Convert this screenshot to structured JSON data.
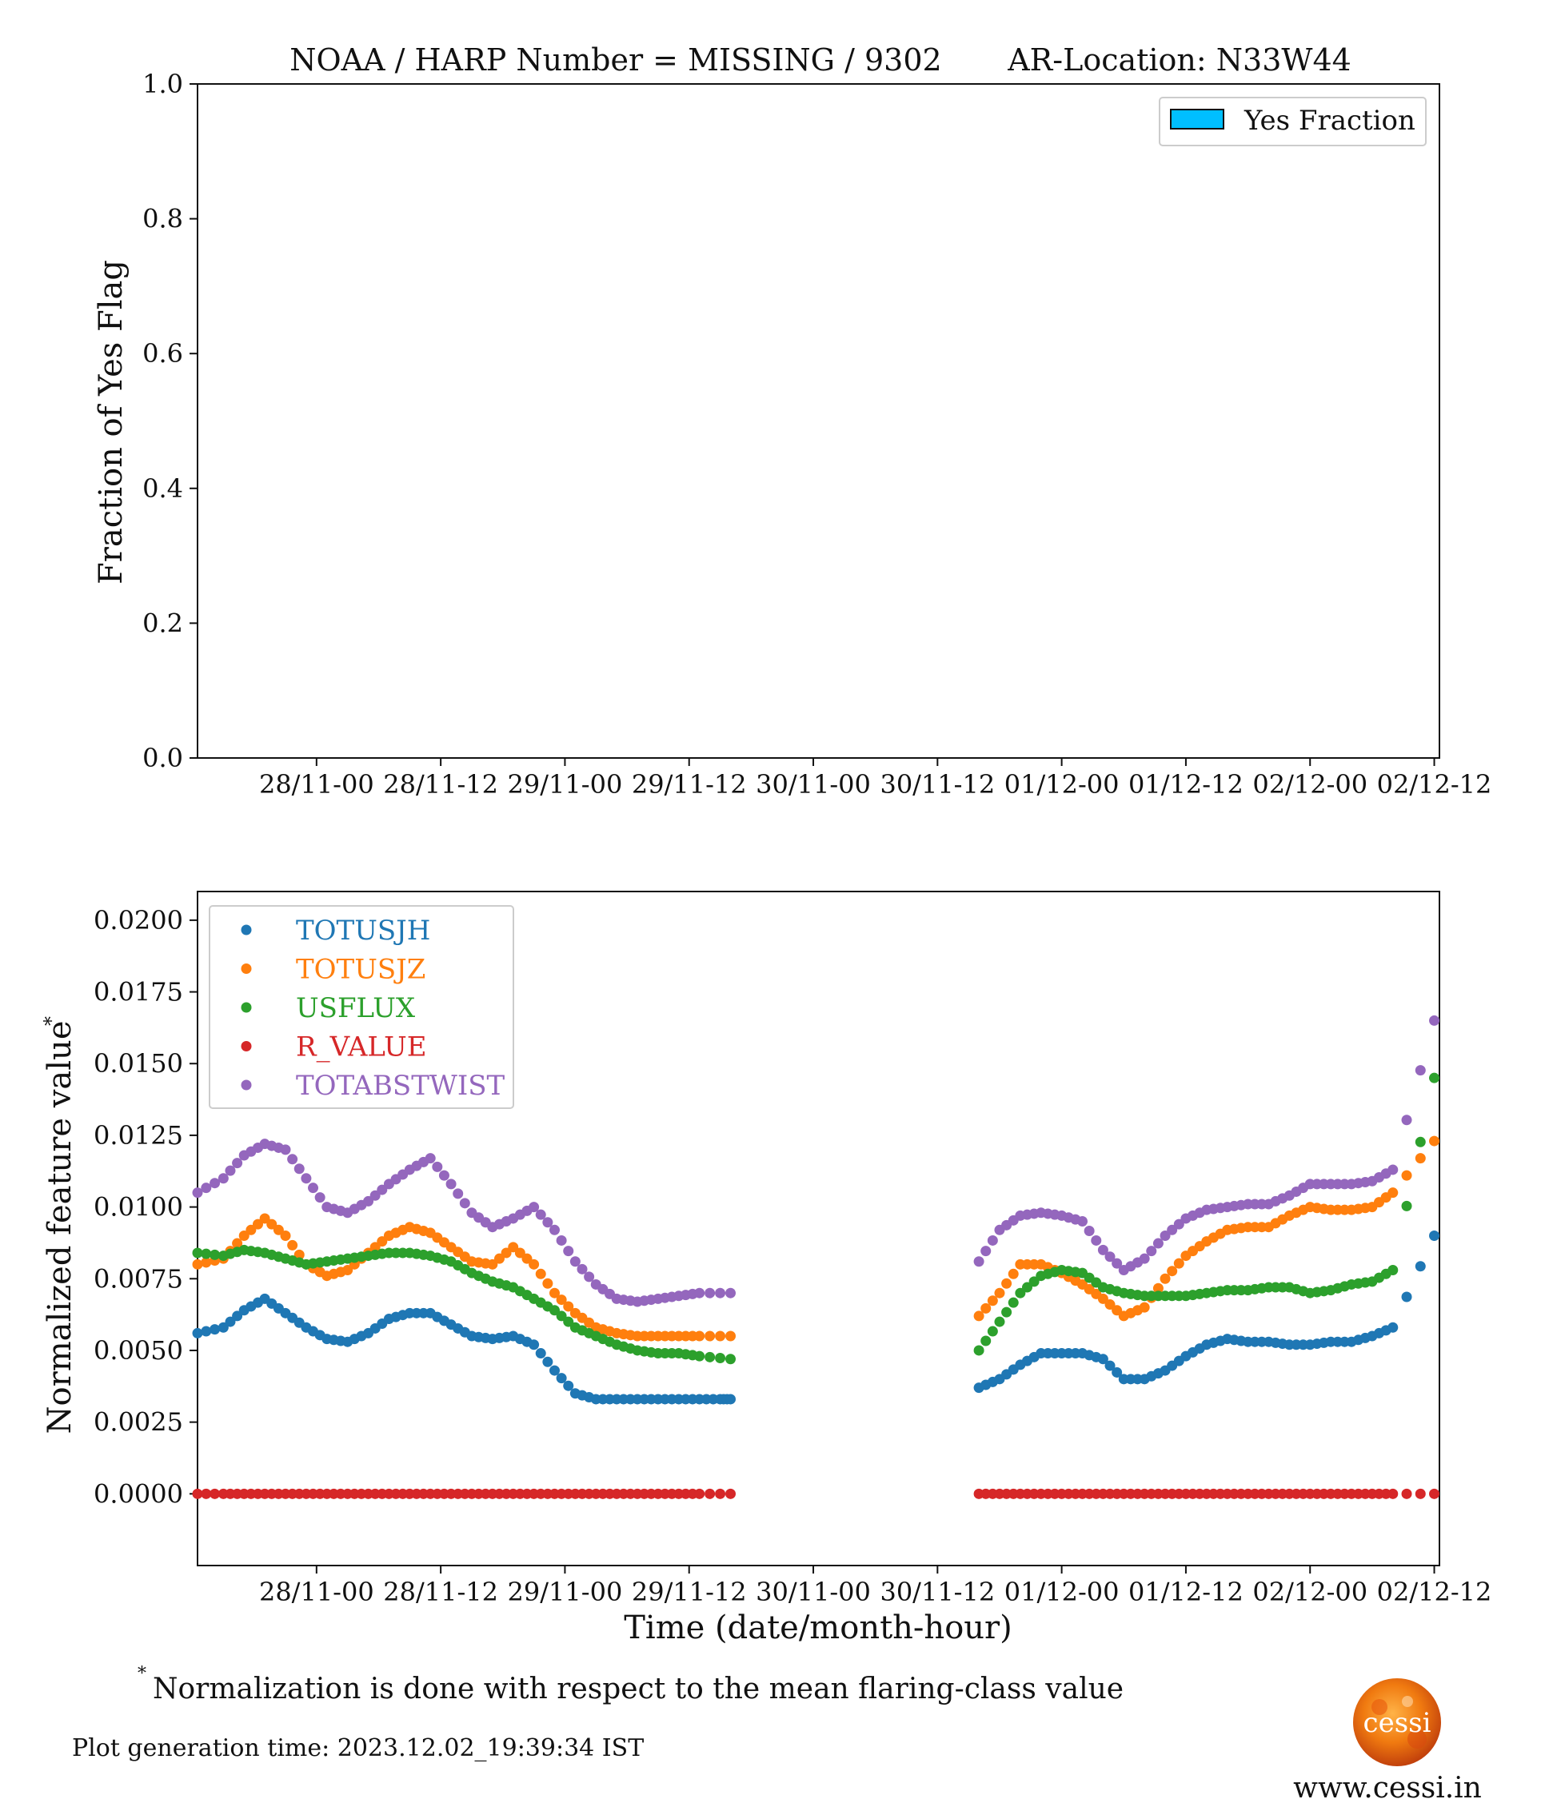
{
  "chart_data": [
    {
      "type": "bar",
      "title_left": "NOAA / HARP Number = MISSING / 9302",
      "title_right": "AR-Location: N33W44",
      "ylabel": "Fraction of Yes Flag",
      "xlabel": "",
      "ylim": [
        0,
        1.0
      ],
      "yticks": [
        "0.0",
        "0.2",
        "0.4",
        "0.6",
        "0.8",
        "1.0"
      ],
      "xticks": [
        "28/11-00",
        "28/11-12",
        "29/11-00",
        "29/11-12",
        "30/11-00",
        "30/11-12",
        "01/12-00",
        "01/12-12",
        "02/12-00",
        "02/12-12"
      ],
      "legend": [
        {
          "name": "Yes Fraction",
          "color": "#00bfff"
        }
      ],
      "legend_position": "top-right",
      "values": [],
      "grid": false
    },
    {
      "type": "scatter",
      "ylabel": "Normalized feature value",
      "ylabel_mark": "*",
      "xlabel": "Time (date/month-hour)",
      "x_unit": "hours since 28/11-00",
      "xlim": [
        -11.5,
        108.5
      ],
      "ylim": [
        -0.0025,
        0.021
      ],
      "yticks": [
        "0.0000",
        "0.0025",
        "0.0050",
        "0.0075",
        "0.0100",
        "0.0125",
        "0.0150",
        "0.0175",
        "0.0200"
      ],
      "xticks": [
        "28/11-00",
        "28/11-12",
        "29/11-00",
        "29/11-12",
        "30/11-00",
        "30/11-12",
        "01/12-00",
        "01/12-12",
        "02/12-00",
        "02/12-12"
      ],
      "legend_position": "top-left",
      "grid": false,
      "series": [
        {
          "name": "TOTUSJH",
          "color": "#1f77b4",
          "points": [
            [
              -11.5,
              0.0056
            ],
            [
              -9,
              0.0058
            ],
            [
              -7,
              0.0064
            ],
            [
              -5,
              0.0068
            ],
            [
              -3,
              0.0063
            ],
            [
              -1,
              0.0058
            ],
            [
              1,
              0.0054
            ],
            [
              3,
              0.0053
            ],
            [
              5,
              0.0056
            ],
            [
              7,
              0.0061
            ],
            [
              9,
              0.0063
            ],
            [
              11,
              0.0063
            ],
            [
              13,
              0.0059
            ],
            [
              15,
              0.0055
            ],
            [
              17,
              0.0054
            ],
            [
              19,
              0.0055
            ],
            [
              21,
              0.0052
            ],
            [
              23,
              0.0043
            ],
            [
              25,
              0.0035
            ],
            [
              27,
              0.0033
            ],
            [
              29,
              0.0033
            ],
            [
              31,
              0.0033
            ],
            [
              33,
              0.0033
            ],
            [
              35,
              0.0033
            ],
            [
              37,
              0.0033
            ],
            [
              39,
              0.0033
            ],
            [
              40,
              0.0033
            ],
            [
              52,
              null
            ],
            [
              64,
              0.0037
            ],
            [
              66,
              0.004
            ],
            [
              68,
              0.0045
            ],
            [
              70,
              0.0049
            ],
            [
              72,
              0.0049
            ],
            [
              74,
              0.0049
            ],
            [
              76,
              0.0047
            ],
            [
              78,
              0.004
            ],
            [
              80,
              0.004
            ],
            [
              82,
              0.0043
            ],
            [
              84,
              0.0048
            ],
            [
              86,
              0.0052
            ],
            [
              88,
              0.0054
            ],
            [
              90,
              0.0053
            ],
            [
              92,
              0.0053
            ],
            [
              94,
              0.0052
            ],
            [
              96,
              0.0052
            ],
            [
              98,
              0.0053
            ],
            [
              100,
              0.0053
            ],
            [
              102,
              0.0055
            ],
            [
              104,
              0.0058
            ],
            [
              108,
              0.009
            ]
          ]
        },
        {
          "name": "TOTUSJZ",
          "color": "#ff7f0e",
          "points": [
            [
              -11.5,
              0.008
            ],
            [
              -9,
              0.0082
            ],
            [
              -7,
              0.009
            ],
            [
              -5,
              0.0096
            ],
            [
              -3,
              0.009
            ],
            [
              -1,
              0.008
            ],
            [
              1,
              0.0076
            ],
            [
              3,
              0.0078
            ],
            [
              5,
              0.0084
            ],
            [
              7,
              0.009
            ],
            [
              9,
              0.0093
            ],
            [
              11,
              0.0091
            ],
            [
              13,
              0.0086
            ],
            [
              15,
              0.0081
            ],
            [
              17,
              0.008
            ],
            [
              19,
              0.0086
            ],
            [
              21,
              0.008
            ],
            [
              23,
              0.007
            ],
            [
              25,
              0.0063
            ],
            [
              27,
              0.0058
            ],
            [
              29,
              0.0056
            ],
            [
              31,
              0.0055
            ],
            [
              33,
              0.0055
            ],
            [
              35,
              0.0055
            ],
            [
              37,
              0.0055
            ],
            [
              40,
              0.0055
            ],
            [
              64,
              0.0062
            ],
            [
              66,
              0.007
            ],
            [
              68,
              0.008
            ],
            [
              70,
              0.008
            ],
            [
              72,
              0.0077
            ],
            [
              74,
              0.0073
            ],
            [
              76,
              0.0068
            ],
            [
              78,
              0.0062
            ],
            [
              80,
              0.0065
            ],
            [
              82,
              0.0075
            ],
            [
              84,
              0.0083
            ],
            [
              86,
              0.0088
            ],
            [
              88,
              0.0092
            ],
            [
              90,
              0.0093
            ],
            [
              92,
              0.0093
            ],
            [
              94,
              0.0097
            ],
            [
              96,
              0.01
            ],
            [
              98,
              0.0099
            ],
            [
              100,
              0.0099
            ],
            [
              102,
              0.01
            ],
            [
              104,
              0.0105
            ],
            [
              108,
              0.0123
            ]
          ]
        },
        {
          "name": "USFLUX",
          "color": "#2ca02c",
          "points": [
            [
              -11.5,
              0.0084
            ],
            [
              -9,
              0.0083
            ],
            [
              -7,
              0.0085
            ],
            [
              -5,
              0.0084
            ],
            [
              -3,
              0.0082
            ],
            [
              -1,
              0.008
            ],
            [
              1,
              0.0081
            ],
            [
              3,
              0.0082
            ],
            [
              5,
              0.0083
            ],
            [
              7,
              0.0084
            ],
            [
              9,
              0.0084
            ],
            [
              11,
              0.0083
            ],
            [
              13,
              0.0081
            ],
            [
              15,
              0.0077
            ],
            [
              17,
              0.0074
            ],
            [
              19,
              0.0072
            ],
            [
              21,
              0.0068
            ],
            [
              23,
              0.0064
            ],
            [
              25,
              0.0058
            ],
            [
              27,
              0.0055
            ],
            [
              29,
              0.0052
            ],
            [
              31,
              0.005
            ],
            [
              33,
              0.0049
            ],
            [
              35,
              0.0049
            ],
            [
              37,
              0.0048
            ],
            [
              40,
              0.0047
            ],
            [
              64,
              0.005
            ],
            [
              66,
              0.006
            ],
            [
              68,
              0.007
            ],
            [
              70,
              0.0076
            ],
            [
              72,
              0.0078
            ],
            [
              74,
              0.0077
            ],
            [
              76,
              0.0072
            ],
            [
              78,
              0.007
            ],
            [
              80,
              0.0069
            ],
            [
              82,
              0.0069
            ],
            [
              84,
              0.0069
            ],
            [
              86,
              0.007
            ],
            [
              88,
              0.0071
            ],
            [
              90,
              0.0071
            ],
            [
              92,
              0.0072
            ],
            [
              94,
              0.0072
            ],
            [
              96,
              0.007
            ],
            [
              98,
              0.0071
            ],
            [
              100,
              0.0073
            ],
            [
              102,
              0.0074
            ],
            [
              104,
              0.0078
            ],
            [
              108,
              0.0145
            ]
          ]
        },
        {
          "name": "R_VALUE",
          "color": "#d62728",
          "points": [
            [
              -11.5,
              0.0
            ],
            [
              -9,
              0.0
            ],
            [
              -7,
              0.0
            ],
            [
              -5,
              0.0
            ],
            [
              -3,
              0.0
            ],
            [
              -1,
              0.0
            ],
            [
              1,
              0.0
            ],
            [
              3,
              0.0
            ],
            [
              5,
              0.0
            ],
            [
              7,
              0.0
            ],
            [
              9,
              0.0
            ],
            [
              11,
              0.0
            ],
            [
              13,
              0.0
            ],
            [
              15,
              0.0
            ],
            [
              17,
              0.0
            ],
            [
              19,
              0.0
            ],
            [
              21,
              0.0
            ],
            [
              23,
              0.0
            ],
            [
              25,
              0.0
            ],
            [
              27,
              0.0
            ],
            [
              29,
              0.0
            ],
            [
              31,
              0.0
            ],
            [
              33,
              0.0
            ],
            [
              35,
              0.0
            ],
            [
              37,
              0.0
            ],
            [
              40,
              0.0
            ],
            [
              64,
              0.0
            ],
            [
              66,
              0.0
            ],
            [
              68,
              0.0
            ],
            [
              70,
              0.0
            ],
            [
              72,
              0.0
            ],
            [
              74,
              0.0
            ],
            [
              76,
              0.0
            ],
            [
              78,
              0.0
            ],
            [
              80,
              0.0
            ],
            [
              82,
              0.0
            ],
            [
              84,
              0.0
            ],
            [
              86,
              0.0
            ],
            [
              88,
              0.0
            ],
            [
              90,
              0.0
            ],
            [
              92,
              0.0
            ],
            [
              94,
              0.0
            ],
            [
              96,
              0.0
            ],
            [
              98,
              0.0
            ],
            [
              100,
              0.0
            ],
            [
              102,
              0.0
            ],
            [
              104,
              0.0
            ],
            [
              108,
              0.0
            ]
          ]
        },
        {
          "name": "TOTABSTWIST",
          "color": "#9467bd",
          "points": [
            [
              -11.5,
              0.0105
            ],
            [
              -9,
              0.011
            ],
            [
              -7,
              0.0118
            ],
            [
              -5,
              0.0122
            ],
            [
              -3,
              0.012
            ],
            [
              -1,
              0.011
            ],
            [
              1,
              0.01
            ],
            [
              3,
              0.0098
            ],
            [
              5,
              0.0102
            ],
            [
              7,
              0.0108
            ],
            [
              9,
              0.0113
            ],
            [
              11,
              0.0117
            ],
            [
              13,
              0.0108
            ],
            [
              15,
              0.0098
            ],
            [
              17,
              0.0093
            ],
            [
              19,
              0.0096
            ],
            [
              21,
              0.01
            ],
            [
              23,
              0.0092
            ],
            [
              25,
              0.0081
            ],
            [
              27,
              0.0073
            ],
            [
              29,
              0.0068
            ],
            [
              31,
              0.0067
            ],
            [
              33,
              0.0068
            ],
            [
              35,
              0.0069
            ],
            [
              37,
              0.007
            ],
            [
              40,
              0.007
            ],
            [
              64,
              0.0081
            ],
            [
              66,
              0.0092
            ],
            [
              68,
              0.0097
            ],
            [
              70,
              0.0098
            ],
            [
              72,
              0.0097
            ],
            [
              74,
              0.0095
            ],
            [
              76,
              0.0085
            ],
            [
              78,
              0.0078
            ],
            [
              80,
              0.0082
            ],
            [
              82,
              0.009
            ],
            [
              84,
              0.0096
            ],
            [
              86,
              0.0099
            ],
            [
              88,
              0.01
            ],
            [
              90,
              0.0101
            ],
            [
              92,
              0.0101
            ],
            [
              94,
              0.0104
            ],
            [
              96,
              0.0108
            ],
            [
              98,
              0.0108
            ],
            [
              100,
              0.0108
            ],
            [
              102,
              0.0109
            ],
            [
              104,
              0.0113
            ],
            [
              108,
              0.0165
            ]
          ]
        }
      ]
    }
  ],
  "footnote": {
    "mark": "*",
    "text": "Normalization is done with respect to the mean flaring-class value"
  },
  "generation_time": "Plot generation time: 2023.12.02_19:39:34 IST",
  "logo": {
    "text": "cessi",
    "url_text": "www.cessi.in"
  }
}
